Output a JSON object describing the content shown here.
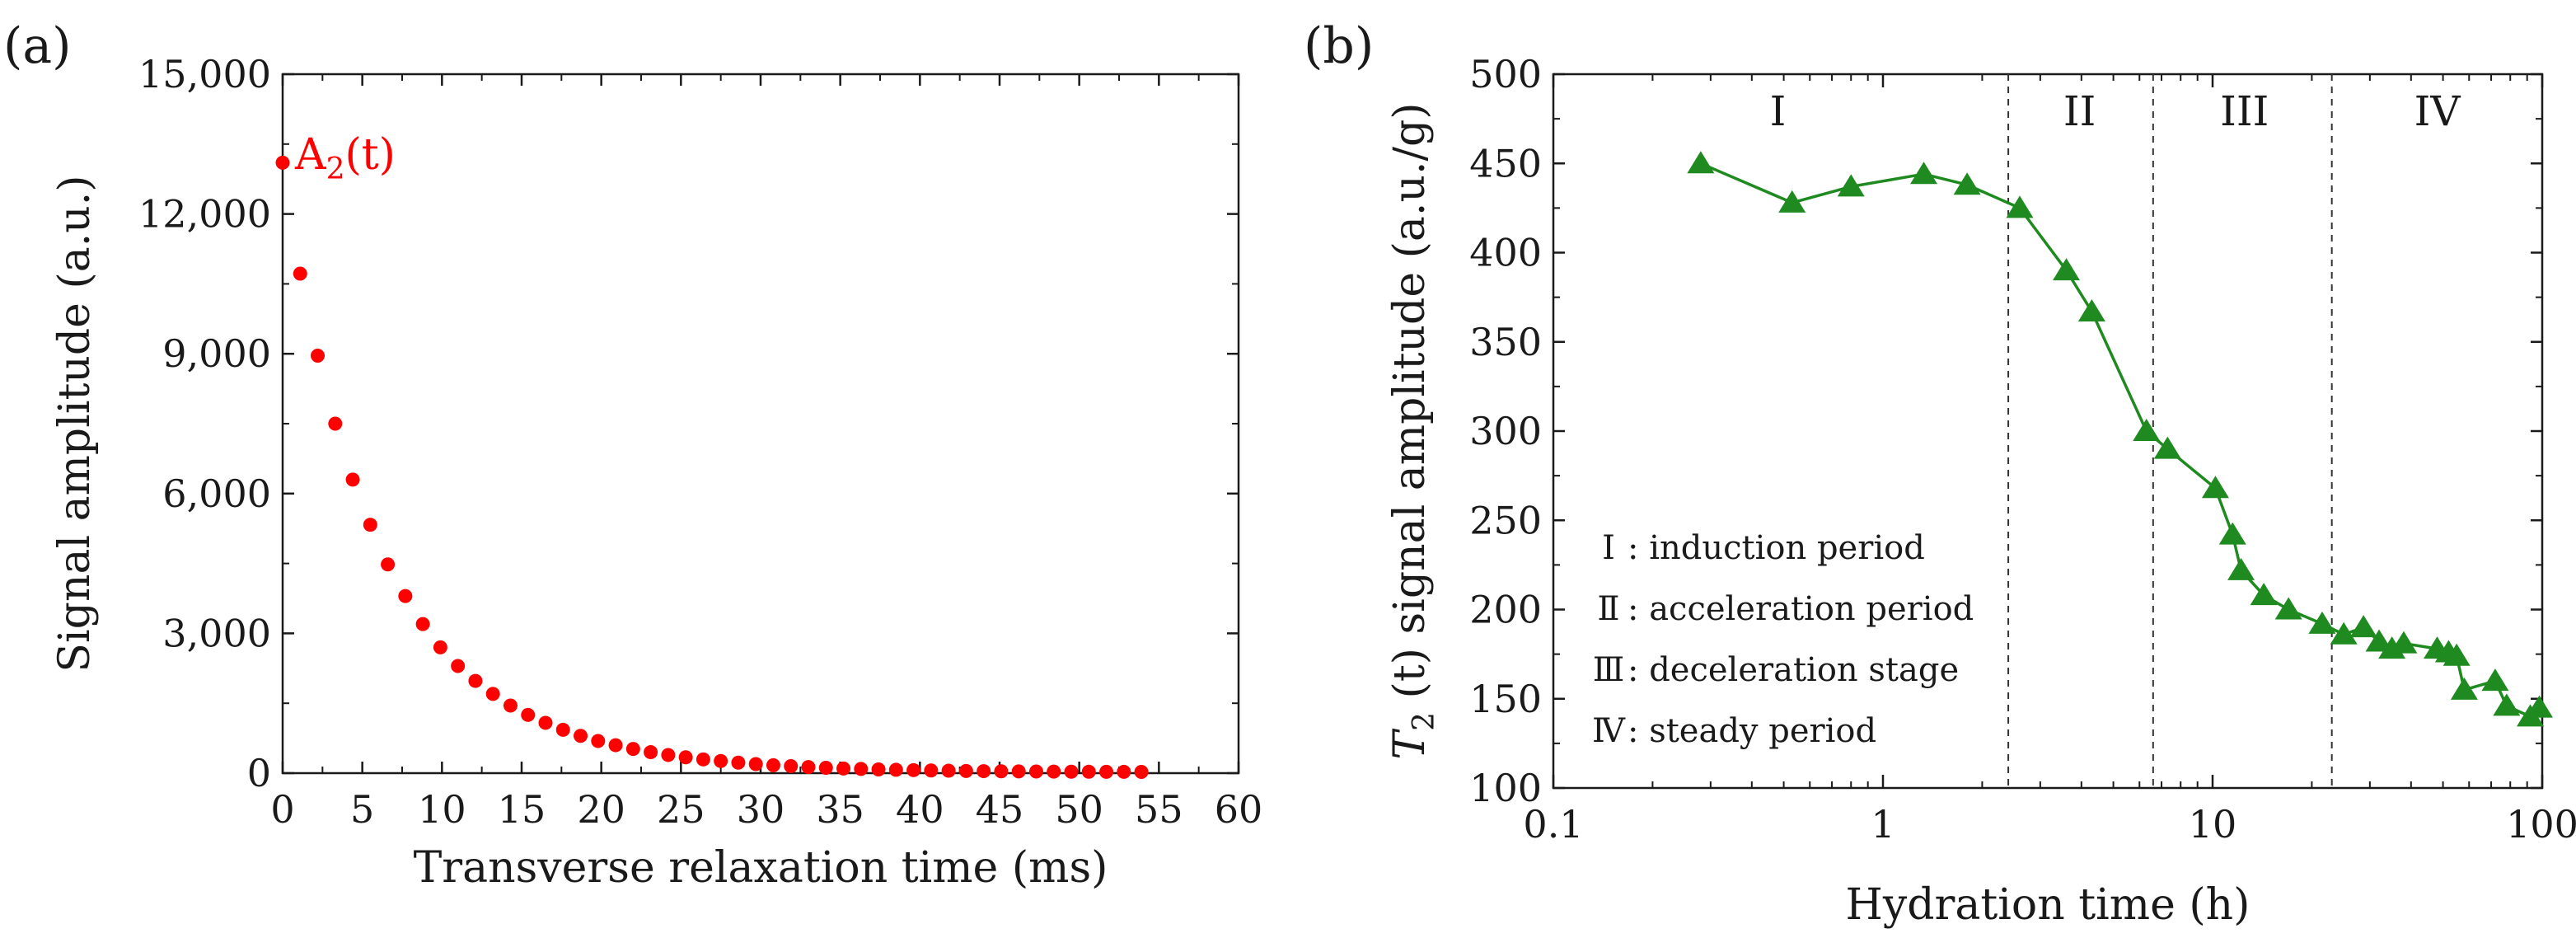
{
  "chart_data": [
    {
      "panel_label": "(a)",
      "type": "scatter",
      "xlabel": "Transverse relaxation time (ms)",
      "ylabel": "Signal amplitude (a.u.)",
      "xlim": [
        0,
        60
      ],
      "ylim": [
        0,
        15000
      ],
      "xticks": [
        "0",
        "5",
        "10",
        "15",
        "20",
        "25",
        "30",
        "35",
        "40",
        "45",
        "50",
        "55",
        "60"
      ],
      "yticks": [
        "0",
        "3,000",
        "6,000",
        "9,000",
        "12,000",
        "15,000"
      ],
      "series": [
        {
          "name": "A2(t)",
          "label_main": "A",
          "label_sub": "2",
          "label_tail": "(t)",
          "color": "#ff0000",
          "x": [
            0,
            1.1,
            2.2,
            3.3,
            4.4,
            5.5,
            6.6,
            7.7,
            8.8,
            9.9,
            11.0,
            12.1,
            13.2,
            14.3,
            15.4,
            16.5,
            17.6,
            18.7,
            19.8,
            20.9,
            22.0,
            23.1,
            24.2,
            25.3,
            26.4,
            27.5,
            28.6,
            29.7,
            30.8,
            31.9,
            33.0,
            34.1,
            35.2,
            36.3,
            37.4,
            38.5,
            39.6,
            40.7,
            41.8,
            42.9,
            44.0,
            45.1,
            46.2,
            47.3,
            48.4,
            49.5,
            50.6,
            51.7,
            52.8,
            53.9
          ],
          "y": [
            13100,
            10720,
            8960,
            7500,
            6300,
            5330,
            4480,
            3800,
            3200,
            2700,
            2300,
            1980,
            1700,
            1450,
            1250,
            1080,
            930,
            800,
            690,
            600,
            520,
            450,
            390,
            340,
            295,
            260,
            225,
            195,
            170,
            150,
            130,
            115,
            100,
            90,
            80,
            72,
            65,
            58,
            52,
            47,
            43,
            40,
            37,
            35,
            33,
            31,
            30,
            29,
            28,
            27
          ]
        }
      ]
    },
    {
      "panel_label": "(b)",
      "type": "line",
      "xscale": "log",
      "xlabel": "Hydration time (h)",
      "ylabel_italic": "T",
      "ylabel_sub": "2",
      "ylabel_rest": " (t) signal amplitude (a.u./g)",
      "xlim": [
        0.1,
        100
      ],
      "ylim": [
        100,
        500
      ],
      "xticks": [
        "0.1",
        "1",
        "10",
        "100"
      ],
      "yticks": [
        "100",
        "150",
        "200",
        "250",
        "300",
        "350",
        "400",
        "450",
        "500"
      ],
      "boundaries": [
        2.4,
        6.6,
        23
      ],
      "period_labels": [
        "I",
        "II",
        "III",
        "IV"
      ],
      "period_centers": [
        0.48,
        3.95,
        12.5,
        48
      ],
      "legend": [
        {
          "symbol": "Ⅰ",
          "text": ": induction period"
        },
        {
          "symbol": "Ⅱ",
          "text": ": acceleration period"
        },
        {
          "symbol": "Ⅲ",
          "text": ": deceleration stage"
        },
        {
          "symbol": "Ⅳ",
          "text": ": steady period"
        }
      ],
      "series": [
        {
          "name": "T2(t) signal amplitude",
          "color": "#1f8a1f",
          "marker": "triangle",
          "x": [
            0.28,
            0.53,
            0.8,
            1.33,
            1.8,
            2.6,
            3.6,
            4.3,
            6.3,
            7.3,
            10.2,
            11.5,
            12.2,
            14.3,
            17.0,
            21.5,
            25.0,
            28.7,
            32.0,
            35.0,
            38.0,
            48.0,
            52.0,
            55.0,
            58.0,
            72.0,
            78.0,
            92.0,
            98.0
          ],
          "y": [
            450,
            428,
            437,
            444,
            438,
            425,
            390,
            367,
            300,
            290,
            268,
            242,
            222,
            208,
            200,
            192,
            186,
            190,
            182,
            178,
            181,
            178,
            176,
            174,
            155,
            160,
            146,
            140,
            145
          ]
        }
      ]
    }
  ]
}
